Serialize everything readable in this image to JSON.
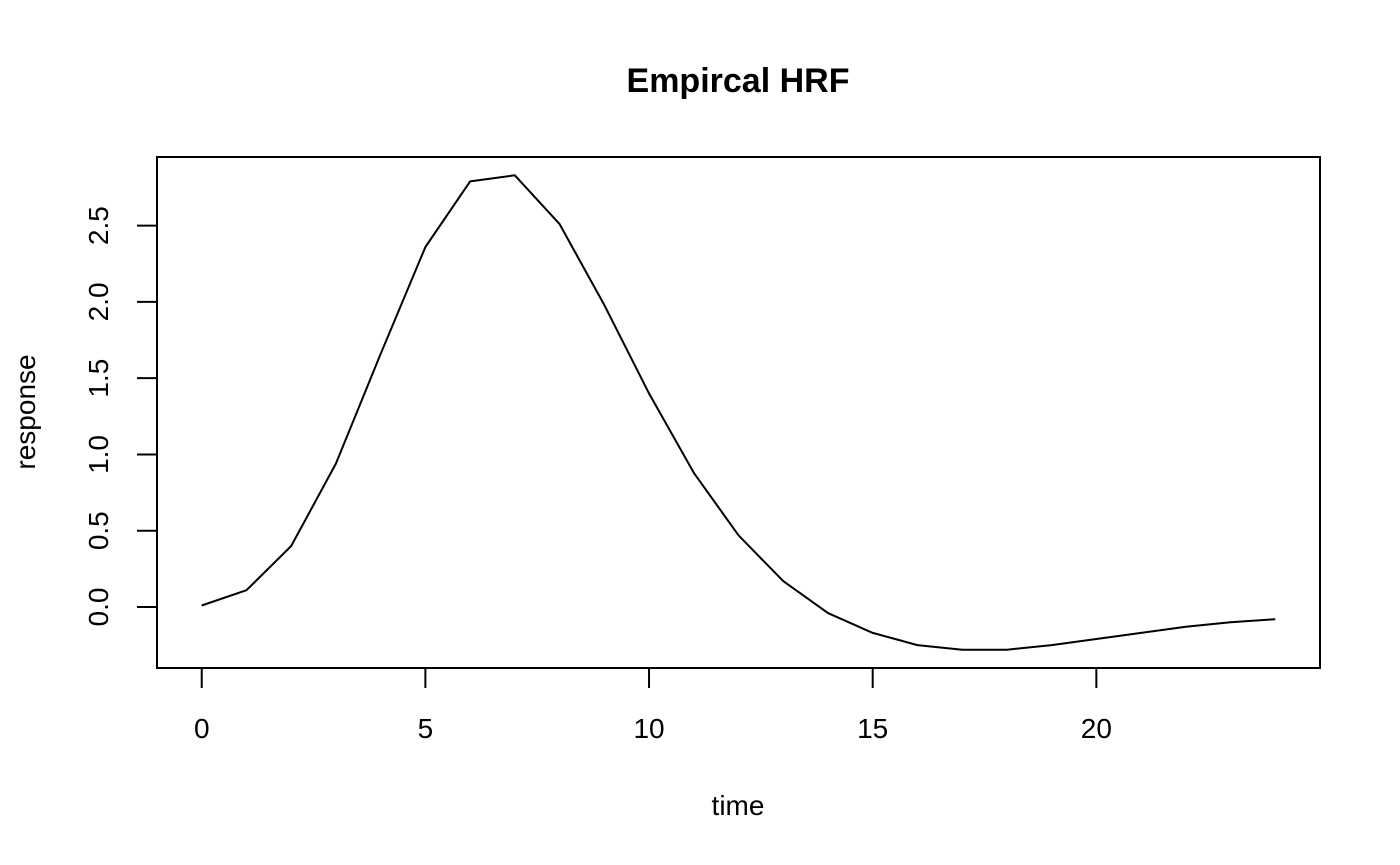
{
  "chart_data": {
    "type": "line",
    "title": "Empircal HRF",
    "xlabel": "time",
    "ylabel": "response",
    "xlim": [
      -1,
      25
    ],
    "ylim": [
      -0.4,
      2.95
    ],
    "grid": false,
    "x": [
      0,
      1,
      2,
      3,
      4,
      5,
      6,
      7,
      8,
      9,
      10,
      11,
      12,
      13,
      14,
      15,
      16,
      17,
      18,
      19,
      20,
      21,
      22,
      23,
      24
    ],
    "series": [
      {
        "values": [
          0.01,
          0.11,
          0.4,
          0.94,
          1.66,
          2.36,
          2.79,
          2.83,
          2.51,
          1.98,
          1.4,
          0.88,
          0.47,
          0.17,
          -0.04,
          -0.17,
          -0.25,
          -0.28,
          -0.28,
          -0.25,
          -0.21,
          -0.17,
          -0.13,
          -0.1,
          -0.08
        ],
        "color": "#000000"
      }
    ],
    "x_ticks": [
      "0",
      "5",
      "10",
      "15",
      "20"
    ],
    "y_ticks": [
      "0.0",
      "0.5",
      "1.0",
      "1.5",
      "2.0",
      "2.5"
    ]
  }
}
